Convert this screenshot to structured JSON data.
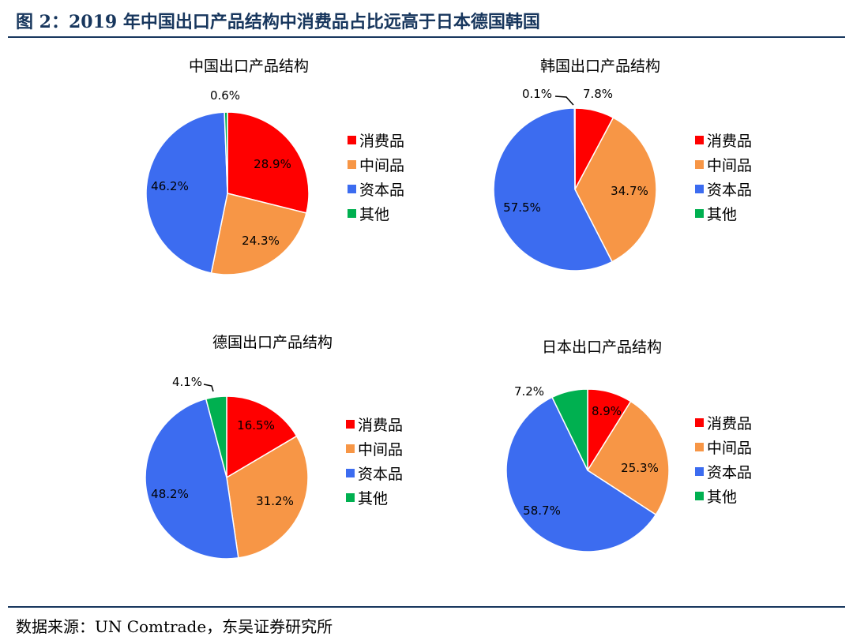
{
  "figure": {
    "title": "图 2：2019 年中国出口产品结构中消费品占比远高于日本德国韩国",
    "source": "数据来源：UN Comtrade，东吴证券研究所"
  },
  "colors": {
    "消费品": "#ff0000",
    "中间品": "#f79646",
    "资本品": "#3c6cf0",
    "其他": "#00b050",
    "rule": "#17365d"
  },
  "legend": [
    "消费品",
    "中间品",
    "资本品",
    "其他"
  ],
  "chart_data": [
    {
      "type": "pie",
      "title": "中国出口产品结构",
      "categories": [
        "消费品",
        "中间品",
        "资本品",
        "其他"
      ],
      "values": [
        28.9,
        24.3,
        46.2,
        0.6
      ],
      "labels": [
        "28.9%",
        "24.3%",
        "46.2%",
        "0.6%"
      ]
    },
    {
      "type": "pie",
      "title": "韩国出口产品结构",
      "categories": [
        "消费品",
        "中间品",
        "资本品",
        "其他"
      ],
      "values": [
        7.8,
        34.7,
        57.5,
        0.1
      ],
      "labels": [
        "7.8%",
        "34.7%",
        "57.5%",
        "0.1%"
      ]
    },
    {
      "type": "pie",
      "title": "德国出口产品结构",
      "categories": [
        "消费品",
        "中间品",
        "资本品",
        "其他"
      ],
      "values": [
        16.5,
        31.2,
        48.2,
        4.1
      ],
      "labels": [
        "16.5%",
        "31.2%",
        "48.2%",
        "4.1%"
      ]
    },
    {
      "type": "pie",
      "title": "日本出口产品结构",
      "categories": [
        "消费品",
        "中间品",
        "资本品",
        "其他"
      ],
      "values": [
        8.9,
        25.3,
        58.7,
        7.2
      ],
      "labels": [
        "8.9%",
        "25.3%",
        "58.7%",
        "7.2%"
      ]
    }
  ]
}
